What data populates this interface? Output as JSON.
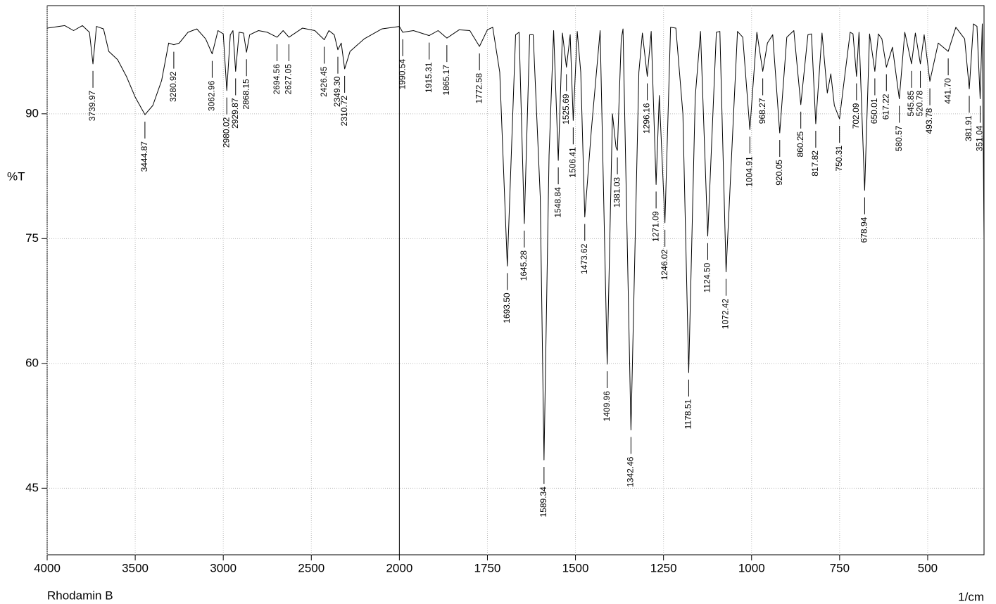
{
  "chart_data": {
    "type": "line",
    "title": "Rhodamin B",
    "x_label": "1/cm",
    "y_label": "%T",
    "color": "#000000",
    "grid": true,
    "x_break": 2000,
    "xlim": [
      4000,
      340
    ],
    "ylim": [
      37,
      103
    ],
    "xticks": [
      4000,
      3500,
      3000,
      2500,
      2000,
      1750,
      1500,
      1250,
      1000,
      750,
      500
    ],
    "yticks": [
      45,
      60,
      75,
      90
    ],
    "x": [
      4000,
      3900,
      3850,
      3800,
      3760,
      3739.97,
      3720,
      3680,
      3650,
      3600,
      3550,
      3500,
      3444.87,
      3400,
      3350,
      3310,
      3280.92,
      3250,
      3200,
      3150,
      3100,
      3062.96,
      3030,
      3000,
      2980.02,
      2960,
      2945,
      2929.87,
      2910,
      2885,
      2868.15,
      2850,
      2800,
      2750,
      2694.56,
      2660,
      2627.05,
      2550,
      2480,
      2426.45,
      2400,
      2370,
      2349.3,
      2330,
      2310.72,
      2280,
      2200,
      2100,
      2000,
      1990.54,
      1960,
      1915.31,
      1890,
      1865.17,
      1830,
      1800,
      1772.58,
      1750,
      1735,
      1715,
      1693.5,
      1670,
      1660,
      1645.28,
      1630,
      1620,
      1600,
      1589.34,
      1575,
      1562,
      1548.84,
      1537,
      1525.69,
      1515,
      1506.41,
      1495,
      1485,
      1473.62,
      1455,
      1430,
      1409.96,
      1395,
      1385,
      1381.03,
      1370,
      1365,
      1342.46,
      1320,
      1310,
      1296.16,
      1285,
      1271.09,
      1262,
      1246.02,
      1230,
      1215,
      1195,
      1178.51,
      1160,
      1145,
      1124.5,
      1100,
      1090,
      1072.42,
      1040,
      1025,
      1004.91,
      985,
      968.27,
      955,
      940,
      920.05,
      900,
      880,
      860.25,
      840,
      830,
      817.82,
      800,
      785,
      775,
      765,
      750.31,
      740,
      720,
      712,
      702.09,
      695,
      678.94,
      665,
      650.01,
      640,
      630,
      617.22,
      600,
      580.57,
      565,
      545.85,
      535,
      520.78,
      510,
      493.78,
      470,
      441.7,
      420,
      395,
      381.91,
      370,
      360,
      351.04,
      345,
      340
    ],
    "values": [
      100.3,
      100.6,
      100.0,
      100.6,
      99.8,
      96.0,
      100.5,
      100.2,
      97.5,
      96.5,
      94.5,
      92.0,
      89.9,
      91.0,
      94.0,
      98.5,
      98.3,
      98.5,
      99.8,
      100.2,
      99.0,
      97.2,
      100.0,
      99.6,
      92.8,
      99.5,
      100.0,
      95.1,
      99.8,
      99.7,
      97.4,
      99.5,
      100.0,
      99.8,
      99.2,
      100.0,
      99.2,
      100.3,
      100.0,
      98.9,
      100.0,
      99.5,
      97.7,
      98.5,
      95.4,
      97.5,
      99.0,
      100.2,
      100.5,
      99.8,
      100.0,
      99.4,
      100.0,
      99.1,
      100.1,
      100.0,
      98.1,
      100.1,
      100.4,
      95,
      71.7,
      99.5,
      99.8,
      76.8,
      99.5,
      99.5,
      80,
      48.4,
      85,
      100,
      84.4,
      99.7,
      95.6,
      99.5,
      89.2,
      99.9,
      95,
      77.6,
      88,
      100,
      59.9,
      90,
      86,
      85.6,
      99,
      100.2,
      52.0,
      95,
      99.7,
      94.5,
      99.9,
      81.5,
      92.2,
      76.9,
      100.4,
      100.3,
      90,
      58.9,
      92,
      99.9,
      75.3,
      99.8,
      99.9,
      71.0,
      99.9,
      99.2,
      88.1,
      99.8,
      95.1,
      98.5,
      99.5,
      87.7,
      99.2,
      100.0,
      91.1,
      99.5,
      99.6,
      88.8,
      99.7,
      92.5,
      94.8,
      91.0,
      89.4,
      93,
      99.8,
      99.6,
      94.5,
      99.8,
      80.8,
      99.6,
      95.1,
      99.6,
      99,
      95.6,
      98,
      91.8,
      99.8,
      96.0,
      99.7,
      96.0,
      99.5,
      93.9,
      98.5,
      97.5,
      100.4,
      99,
      93.0,
      100.8,
      100.5,
      91.8,
      100.8,
      75
    ],
    "peaks": {
      "x": [
        3739.97,
        3444.87,
        3280.92,
        3062.96,
        2980.02,
        2929.87,
        2868.15,
        2694.56,
        2627.05,
        2426.45,
        2349.3,
        2310.72,
        1990.54,
        1915.31,
        1865.17,
        1772.58,
        1693.5,
        1645.28,
        1589.34,
        1548.84,
        1525.69,
        1506.41,
        1473.62,
        1409.96,
        1381.03,
        1342.46,
        1296.16,
        1271.09,
        1246.02,
        1178.51,
        1124.5,
        1072.42,
        1004.91,
        968.27,
        920.05,
        860.25,
        817.82,
        750.31,
        702.09,
        678.94,
        650.01,
        617.22,
        580.57,
        545.85,
        520.78,
        493.78,
        441.7,
        381.91,
        351.04
      ],
      "values": [
        96.0,
        89.9,
        98.3,
        97.2,
        92.8,
        95.1,
        97.4,
        99.2,
        99.2,
        98.9,
        97.7,
        95.4,
        99.8,
        99.4,
        99.1,
        98.1,
        71.7,
        76.8,
        48.4,
        84.4,
        95.6,
        89.2,
        77.6,
        59.9,
        85.6,
        52.0,
        94.5,
        81.5,
        76.9,
        58.9,
        75.3,
        71.0,
        88.1,
        95.1,
        87.7,
        91.1,
        88.8,
        89.4,
        94.5,
        80.8,
        95.1,
        95.6,
        91.8,
        96.0,
        96.0,
        93.9,
        97.5,
        93.0,
        91.8
      ],
      "x_labels": [
        "3739.97",
        "3444.87",
        "3280.92",
        "3062.96",
        "2980.02",
        "2929.87",
        "2868.15",
        "2694.56",
        "2627.05",
        "2426.45",
        "2349.30",
        "2310.72",
        "1990.54",
        "1915.31",
        "1865.17",
        "1772.58",
        "1693.50",
        "1645.28",
        "1589.34",
        "1548.84",
        "1525.69",
        "1506.41",
        "1473.62",
        "1409.96",
        "1381.03",
        "1342.46",
        "1296.16",
        "1271.09",
        "1246.02",
        "1178.51",
        "1124.50",
        "1072.42",
        "1004.91",
        "968.27",
        "920.05",
        "860.25",
        "817.82",
        "750.31",
        "702.09",
        "678.94",
        "650.01",
        "617.22",
        "580.57",
        "545.85",
        "520.78",
        "493.78",
        "441.70",
        "381.91",
        "351.04"
      ]
    }
  }
}
